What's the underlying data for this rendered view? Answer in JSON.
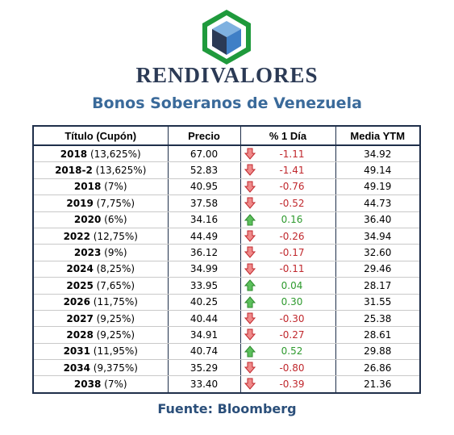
{
  "header": {
    "logo_icon": "rendivalores-cube-logo",
    "brand": "RENDIVALORES",
    "subtitle": "Bonos Soberanos de Venezuela"
  },
  "table": {
    "columns": [
      "Título (Cupón)",
      "Precio",
      "% 1 Día",
      "Media YTM"
    ],
    "rows": [
      {
        "year": "2018",
        "coupon": "(13,625%)",
        "precio": "67.00",
        "dia": "-1.11",
        "direction": "down",
        "ytm": "34.92"
      },
      {
        "year": "2018-2",
        "coupon": "(13,625%)",
        "precio": "52.83",
        "dia": "-1.41",
        "direction": "down",
        "ytm": "49.14"
      },
      {
        "year": "2018",
        "coupon": "(7%)",
        "precio": "40.95",
        "dia": "-0.76",
        "direction": "down",
        "ytm": "49.19"
      },
      {
        "year": "2019",
        "coupon": "(7,75%)",
        "precio": "37.58",
        "dia": "-0.52",
        "direction": "down",
        "ytm": "44.73"
      },
      {
        "year": "2020",
        "coupon": "(6%)",
        "precio": "34.16",
        "dia": "0.16",
        "direction": "up",
        "ytm": "36.40"
      },
      {
        "year": "2022",
        "coupon": "(12,75%)",
        "precio": "44.49",
        "dia": "-0.26",
        "direction": "down",
        "ytm": "34.94"
      },
      {
        "year": "2023",
        "coupon": "(9%)",
        "precio": "36.12",
        "dia": "-0.17",
        "direction": "down",
        "ytm": "32.60"
      },
      {
        "year": "2024",
        "coupon": "(8,25%)",
        "precio": "34.99",
        "dia": "-0.11",
        "direction": "down",
        "ytm": "29.46"
      },
      {
        "year": "2025",
        "coupon": "(7,65%)",
        "precio": "33.95",
        "dia": "0.04",
        "direction": "up",
        "ytm": "28.17"
      },
      {
        "year": "2026",
        "coupon": "(11,75%)",
        "precio": "40.25",
        "dia": "0.30",
        "direction": "up",
        "ytm": "31.55"
      },
      {
        "year": "2027",
        "coupon": "(9,25%)",
        "precio": "40.44",
        "dia": "-0.30",
        "direction": "down",
        "ytm": "25.38"
      },
      {
        "year": "2028",
        "coupon": "(9,25%)",
        "precio": "34.91",
        "dia": "-0.27",
        "direction": "down",
        "ytm": "28.61"
      },
      {
        "year": "2031",
        "coupon": "(11,95%)",
        "precio": "40.74",
        "dia": "0.52",
        "direction": "up",
        "ytm": "29.88"
      },
      {
        "year": "2034",
        "coupon": "(9,375%)",
        "precio": "35.29",
        "dia": "-0.80",
        "direction": "down",
        "ytm": "26.86"
      },
      {
        "year": "2038",
        "coupon": "(7%)",
        "precio": "33.40",
        "dia": "-0.39",
        "direction": "down",
        "ytm": "21.36"
      }
    ]
  },
  "footer": {
    "source": "Fuente: Bloomberg"
  },
  "colors": {
    "brand_navy": "#2b3a55",
    "subtitle_blue": "#3a6a9a",
    "negative_red": "#c0282d",
    "positive_green": "#2e9a2e",
    "logo_green": "#1f9a3c",
    "logo_blue": "#3f7fc6"
  }
}
